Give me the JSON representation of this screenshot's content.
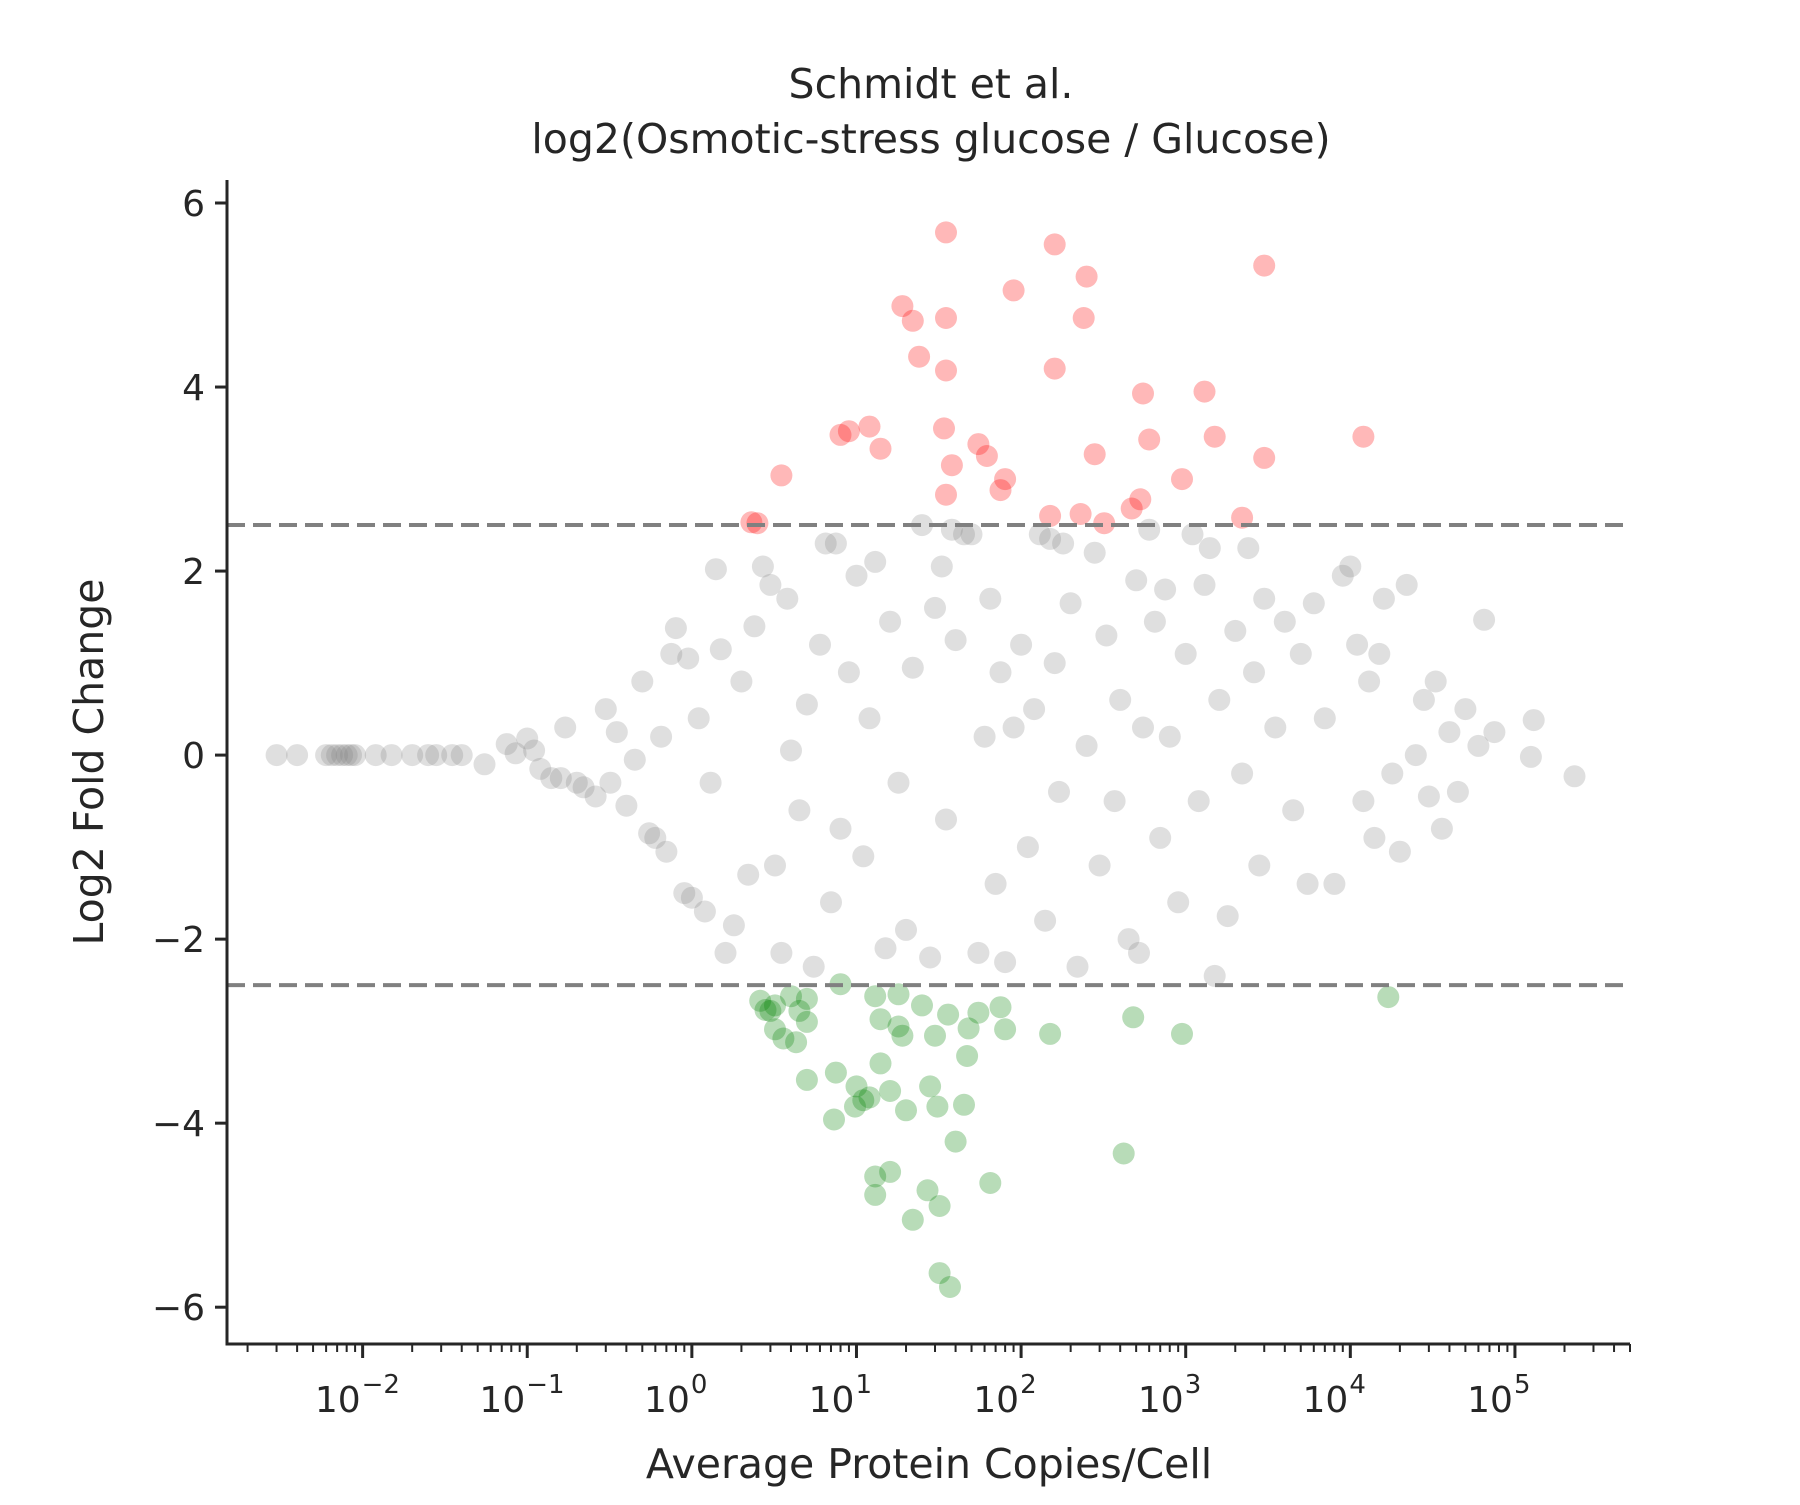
{
  "chart_data": {
    "type": "scatter",
    "title": "Schmidt et al.",
    "subtitle": "log2(Osmotic-stress glucose / Glucose)",
    "xlabel": "Average Protein Copies/Cell",
    "ylabel": "Log2 Fold Change",
    "x_scale": "log10",
    "xlim": [
      0.0015,
      500000
    ],
    "ylim": [
      -6.4,
      6.25
    ],
    "x_major_ticks": [
      0.01,
      0.1,
      1,
      10,
      100,
      1000,
      10000,
      100000
    ],
    "x_tick_labels": [
      {
        "base": "10",
        "exp": "−2"
      },
      {
        "base": "10",
        "exp": "−1"
      },
      {
        "base": "10",
        "exp": "0"
      },
      {
        "base": "10",
        "exp": "1"
      },
      {
        "base": "10",
        "exp": "2"
      },
      {
        "base": "10",
        "exp": "3"
      },
      {
        "base": "10",
        "exp": "4"
      },
      {
        "base": "10",
        "exp": "5"
      }
    ],
    "y_ticks": [
      6,
      4,
      2,
      0,
      -2,
      -4,
      -6
    ],
    "y_tick_labels": [
      "6",
      "4",
      "2",
      "0",
      "−2",
      "−4",
      "−6"
    ],
    "thresholds": [
      2.5,
      -2.5
    ],
    "threshold_color": "#808080",
    "grid": false,
    "colors": {
      "up": "#ff0000",
      "down": "#008000",
      "unchanged": "#808080"
    },
    "series": [
      {
        "key": "up",
        "color": "#ff0000",
        "values": [
          [
            35,
            5.68
          ],
          [
            160,
            5.55
          ],
          [
            250,
            5.2
          ],
          [
            3000,
            5.32
          ],
          [
            90,
            5.05
          ],
          [
            19,
            4.88
          ],
          [
            22,
            4.72
          ],
          [
            35,
            4.75
          ],
          [
            240,
            4.75
          ],
          [
            24,
            4.33
          ],
          [
            35,
            4.18
          ],
          [
            160,
            4.2
          ],
          [
            550,
            3.93
          ],
          [
            1300,
            3.95
          ],
          [
            8,
            3.48
          ],
          [
            9,
            3.52
          ],
          [
            12,
            3.57
          ],
          [
            14,
            3.33
          ],
          [
            34,
            3.55
          ],
          [
            55,
            3.38
          ],
          [
            600,
            3.43
          ],
          [
            1500,
            3.46
          ],
          [
            12000,
            3.46
          ],
          [
            3.5,
            3.04
          ],
          [
            38,
            3.15
          ],
          [
            62,
            3.25
          ],
          [
            80,
            3.0
          ],
          [
            280,
            3.27
          ],
          [
            950,
            3.0
          ],
          [
            3000,
            3.23
          ],
          [
            35,
            2.83
          ],
          [
            75,
            2.88
          ],
          [
            150,
            2.6
          ],
          [
            230,
            2.62
          ],
          [
            470,
            2.68
          ],
          [
            530,
            2.78
          ],
          [
            2200,
            2.58
          ],
          [
            2.3,
            2.53
          ],
          [
            2.5,
            2.52
          ],
          [
            320,
            2.52
          ]
        ]
      },
      {
        "key": "down",
        "color": "#008000",
        "values": [
          [
            2.6,
            -2.67
          ],
          [
            3.0,
            -2.78
          ],
          [
            3.2,
            -2.72
          ],
          [
            2.8,
            -2.77
          ],
          [
            4.0,
            -2.62
          ],
          [
            4.5,
            -2.78
          ],
          [
            5.0,
            -2.65
          ],
          [
            8.0,
            -2.49
          ],
          [
            13,
            -2.62
          ],
          [
            18,
            -2.6
          ],
          [
            3.2,
            -2.98
          ],
          [
            3.6,
            -3.08
          ],
          [
            4.3,
            -3.12
          ],
          [
            5.0,
            -2.9
          ],
          [
            14,
            -2.87
          ],
          [
            18,
            -2.95
          ],
          [
            19,
            -3.05
          ],
          [
            25,
            -2.72
          ],
          [
            30,
            -3.05
          ],
          [
            36,
            -2.82
          ],
          [
            48,
            -2.97
          ],
          [
            55,
            -2.8
          ],
          [
            75,
            -2.74
          ],
          [
            80,
            -2.98
          ],
          [
            150,
            -3.03
          ],
          [
            480,
            -2.85
          ],
          [
            950,
            -3.03
          ],
          [
            17000,
            -2.63
          ],
          [
            5.0,
            -3.53
          ],
          [
            7.5,
            -3.45
          ],
          [
            10,
            -3.6
          ],
          [
            14,
            -3.35
          ],
          [
            16,
            -3.65
          ],
          [
            28,
            -3.6
          ],
          [
            47,
            -3.27
          ],
          [
            7.3,
            -3.96
          ],
          [
            9.8,
            -3.82
          ],
          [
            11,
            -3.75
          ],
          [
            12,
            -3.72
          ],
          [
            20,
            -3.86
          ],
          [
            31,
            -3.82
          ],
          [
            45,
            -3.8
          ],
          [
            40,
            -4.2
          ],
          [
            420,
            -4.33
          ],
          [
            13,
            -4.58
          ],
          [
            16,
            -4.53
          ],
          [
            13,
            -4.78
          ],
          [
            27,
            -4.73
          ],
          [
            65,
            -4.65
          ],
          [
            22,
            -5.05
          ],
          [
            32,
            -4.9
          ],
          [
            32,
            -5.63
          ],
          [
            37,
            -5.78
          ]
        ]
      },
      {
        "key": "unchanged",
        "color": "#808080",
        "values": [
          [
            0.003,
            0.0
          ],
          [
            0.004,
            0.0
          ],
          [
            0.006,
            0.0
          ],
          [
            0.0065,
            0.0
          ],
          [
            0.007,
            0.0
          ],
          [
            0.0075,
            0.0
          ],
          [
            0.008,
            0.0
          ],
          [
            0.0085,
            0.0
          ],
          [
            0.009,
            0.0
          ],
          [
            0.012,
            0.0
          ],
          [
            0.015,
            0.0
          ],
          [
            0.02,
            0.0
          ],
          [
            0.025,
            0.0
          ],
          [
            0.028,
            0.0
          ],
          [
            0.035,
            0.0
          ],
          [
            0.04,
            0.0
          ],
          [
            0.055,
            -0.1
          ],
          [
            0.075,
            0.12
          ],
          [
            0.085,
            0.02
          ],
          [
            0.1,
            0.18
          ],
          [
            0.11,
            0.05
          ],
          [
            0.12,
            -0.15
          ],
          [
            0.14,
            -0.25
          ],
          [
            0.16,
            -0.25
          ],
          [
            0.17,
            0.3
          ],
          [
            0.2,
            -0.3
          ],
          [
            0.22,
            -0.35
          ],
          [
            0.26,
            -0.45
          ],
          [
            0.3,
            0.5
          ],
          [
            0.32,
            -0.3
          ],
          [
            0.35,
            0.25
          ],
          [
            0.4,
            -0.55
          ],
          [
            0.45,
            -0.05
          ],
          [
            0.5,
            0.8
          ],
          [
            0.55,
            -0.85
          ],
          [
            0.6,
            -0.9
          ],
          [
            0.65,
            0.2
          ],
          [
            0.7,
            -1.05
          ],
          [
            0.75,
            1.1
          ],
          [
            0.8,
            1.38
          ],
          [
            0.9,
            -1.5
          ],
          [
            0.95,
            1.05
          ],
          [
            1.0,
            -1.55
          ],
          [
            1.1,
            0.4
          ],
          [
            1.2,
            -1.7
          ],
          [
            1.3,
            -0.3
          ],
          [
            1.4,
            2.02
          ],
          [
            1.5,
            1.15
          ],
          [
            1.6,
            -2.15
          ],
          [
            1.8,
            -1.85
          ],
          [
            2.0,
            0.8
          ],
          [
            2.2,
            -1.3
          ],
          [
            2.4,
            1.4
          ],
          [
            2.7,
            2.05
          ],
          [
            3.0,
            1.85
          ],
          [
            3.2,
            -1.2
          ],
          [
            3.5,
            -2.15
          ],
          [
            3.8,
            1.7
          ],
          [
            4.0,
            0.05
          ],
          [
            4.5,
            -0.6
          ],
          [
            5.0,
            0.55
          ],
          [
            5.5,
            -2.3
          ],
          [
            6.0,
            1.2
          ],
          [
            6.5,
            2.3
          ],
          [
            7.0,
            -1.6
          ],
          [
            7.5,
            2.3
          ],
          [
            8.0,
            -0.8
          ],
          [
            9.0,
            0.9
          ],
          [
            10,
            1.95
          ],
          [
            11,
            -1.1
          ],
          [
            12,
            0.4
          ],
          [
            13,
            2.1
          ],
          [
            15,
            -2.1
          ],
          [
            16,
            1.45
          ],
          [
            18,
            -0.3
          ],
          [
            20,
            -1.9
          ],
          [
            22,
            0.95
          ],
          [
            25,
            2.5
          ],
          [
            28,
            -2.2
          ],
          [
            30,
            1.6
          ],
          [
            33,
            2.05
          ],
          [
            35,
            -0.7
          ],
          [
            38,
            2.45
          ],
          [
            40,
            1.25
          ],
          [
            45,
            2.4
          ],
          [
            50,
            2.4
          ],
          [
            55,
            -2.15
          ],
          [
            60,
            0.2
          ],
          [
            65,
            1.7
          ],
          [
            70,
            -1.4
          ],
          [
            75,
            0.9
          ],
          [
            80,
            -2.25
          ],
          [
            90,
            0.3
          ],
          [
            100,
            1.2
          ],
          [
            110,
            -1.0
          ],
          [
            120,
            0.5
          ],
          [
            130,
            2.4
          ],
          [
            140,
            -1.8
          ],
          [
            150,
            2.35
          ],
          [
            160,
            1.0
          ],
          [
            170,
            -0.4
          ],
          [
            180,
            2.3
          ],
          [
            200,
            1.65
          ],
          [
            220,
            -2.3
          ],
          [
            250,
            0.1
          ],
          [
            280,
            2.2
          ],
          [
            300,
            -1.2
          ],
          [
            330,
            1.3
          ],
          [
            370,
            -0.5
          ],
          [
            400,
            0.6
          ],
          [
            450,
            -2.0
          ],
          [
            500,
            1.9
          ],
          [
            520,
            -2.15
          ],
          [
            550,
            0.3
          ],
          [
            600,
            2.45
          ],
          [
            650,
            1.45
          ],
          [
            700,
            -0.9
          ],
          [
            750,
            1.8
          ],
          [
            800,
            0.2
          ],
          [
            900,
            -1.6
          ],
          [
            1000,
            1.1
          ],
          [
            1100,
            2.4
          ],
          [
            1200,
            -0.5
          ],
          [
            1300,
            1.85
          ],
          [
            1400,
            2.25
          ],
          [
            1500,
            -2.4
          ],
          [
            1600,
            0.6
          ],
          [
            1800,
            -1.75
          ],
          [
            2000,
            1.35
          ],
          [
            2200,
            -0.2
          ],
          [
            2400,
            2.25
          ],
          [
            2600,
            0.9
          ],
          [
            2800,
            -1.2
          ],
          [
            3000,
            1.7
          ],
          [
            3500,
            0.3
          ],
          [
            4000,
            1.45
          ],
          [
            4500,
            -0.6
          ],
          [
            5000,
            1.1
          ],
          [
            5500,
            -1.4
          ],
          [
            6000,
            1.65
          ],
          [
            7000,
            0.4
          ],
          [
            8000,
            -1.4
          ],
          [
            9000,
            1.95
          ],
          [
            10000,
            2.05
          ],
          [
            11000,
            1.2
          ],
          [
            12000,
            -0.5
          ],
          [
            13000,
            0.8
          ],
          [
            14000,
            -0.9
          ],
          [
            15000,
            1.1
          ],
          [
            16000,
            1.7
          ],
          [
            18000,
            -0.2
          ],
          [
            20000,
            -1.05
          ],
          [
            22000,
            1.85
          ],
          [
            25000,
            0.0
          ],
          [
            28000,
            0.6
          ],
          [
            30000,
            -0.45
          ],
          [
            33000,
            0.8
          ],
          [
            36000,
            -0.8
          ],
          [
            40000,
            0.25
          ],
          [
            45000,
            -0.4
          ],
          [
            50000,
            0.5
          ],
          [
            60000,
            0.1
          ],
          [
            65000,
            1.47
          ],
          [
            75000,
            0.25
          ],
          [
            130000,
            0.38
          ],
          [
            125000,
            -0.02
          ],
          [
            230000,
            -0.23
          ]
        ]
      }
    ]
  }
}
